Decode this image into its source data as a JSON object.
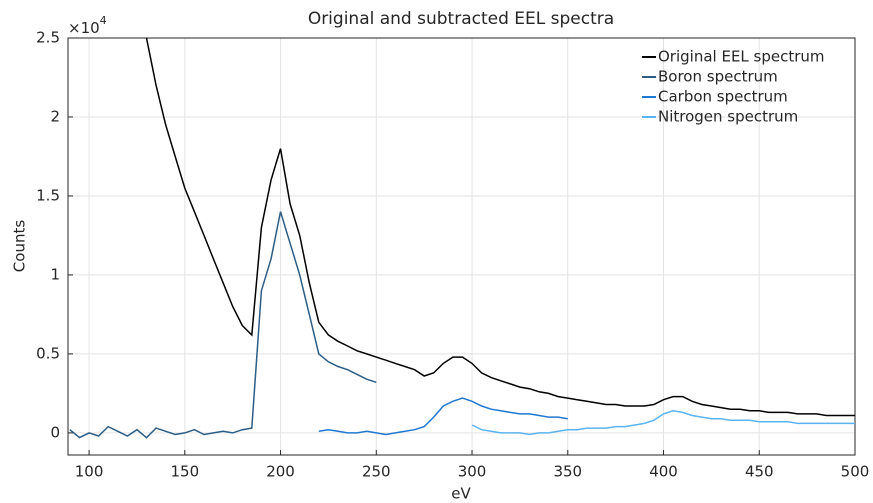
{
  "chart_data": {
    "type": "line",
    "title": "Original and subtracted EEL spectra",
    "xlabel": "eV",
    "ylabel": "Counts",
    "y_multiplier": "×10",
    "y_multiplier_exponent": "4",
    "xlim": [
      89,
      500
    ],
    "ylim": [
      -0.14,
      2.5
    ],
    "xticks": [
      100,
      150,
      200,
      250,
      300,
      350,
      400,
      450,
      500
    ],
    "yticks": [
      0,
      0.5,
      1,
      1.5,
      2,
      2.5
    ],
    "grid": true,
    "legend": "upper right",
    "series": [
      {
        "name": "Original EEL spectrum",
        "color": "#000000",
        "x": [
          130,
          135,
          140,
          145,
          150,
          155,
          160,
          165,
          170,
          175,
          180,
          185,
          190,
          195,
          200,
          205,
          210,
          215,
          220,
          225,
          230,
          235,
          240,
          245,
          250,
          255,
          260,
          265,
          270,
          275,
          280,
          285,
          290,
          295,
          300,
          305,
          310,
          315,
          320,
          325,
          330,
          335,
          340,
          345,
          350,
          355,
          360,
          365,
          370,
          375,
          380,
          385,
          390,
          395,
          400,
          405,
          410,
          415,
          420,
          425,
          430,
          435,
          440,
          445,
          450,
          455,
          460,
          465,
          470,
          475,
          480,
          485,
          490,
          495,
          500
        ],
        "values": [
          2.5,
          2.2,
          1.95,
          1.75,
          1.55,
          1.4,
          1.25,
          1.1,
          0.95,
          0.8,
          0.68,
          0.62,
          1.3,
          1.6,
          1.8,
          1.45,
          1.25,
          0.95,
          0.7,
          0.62,
          0.58,
          0.55,
          0.52,
          0.5,
          0.48,
          0.46,
          0.44,
          0.42,
          0.4,
          0.36,
          0.38,
          0.44,
          0.48,
          0.48,
          0.44,
          0.38,
          0.35,
          0.33,
          0.31,
          0.29,
          0.28,
          0.26,
          0.25,
          0.23,
          0.22,
          0.21,
          0.2,
          0.19,
          0.18,
          0.18,
          0.17,
          0.17,
          0.17,
          0.18,
          0.21,
          0.23,
          0.23,
          0.2,
          0.18,
          0.17,
          0.16,
          0.15,
          0.15,
          0.14,
          0.14,
          0.13,
          0.13,
          0.13,
          0.12,
          0.12,
          0.12,
          0.11,
          0.11,
          0.11,
          0.11
        ]
      },
      {
        "name": "Boron spectrum",
        "color": "#2b5d86",
        "x": [
          90,
          95,
          100,
          105,
          110,
          115,
          120,
          125,
          130,
          135,
          140,
          145,
          150,
          155,
          160,
          165,
          170,
          175,
          180,
          185,
          190,
          195,
          200,
          205,
          210,
          215,
          220,
          225,
          230,
          235,
          240,
          245,
          250
        ],
        "values": [
          0.02,
          -0.03,
          0.0,
          -0.02,
          0.04,
          0.01,
          -0.02,
          0.02,
          -0.03,
          0.03,
          0.01,
          -0.01,
          0.0,
          0.02,
          -0.01,
          0.0,
          0.01,
          0.0,
          0.02,
          0.03,
          0.9,
          1.1,
          1.4,
          1.2,
          1.0,
          0.75,
          0.5,
          0.45,
          0.42,
          0.4,
          0.37,
          0.34,
          0.32
        ]
      },
      {
        "name": "Carbon spectrum",
        "color": "#1f78d1",
        "x": [
          220,
          225,
          230,
          235,
          240,
          245,
          250,
          255,
          260,
          265,
          270,
          275,
          280,
          285,
          290,
          295,
          300,
          305,
          310,
          315,
          320,
          325,
          330,
          335,
          340,
          345,
          350
        ],
        "values": [
          0.01,
          0.02,
          0.01,
          0.0,
          0.0,
          0.01,
          0.0,
          -0.01,
          0.0,
          0.01,
          0.02,
          0.04,
          0.1,
          0.17,
          0.2,
          0.22,
          0.2,
          0.17,
          0.15,
          0.14,
          0.13,
          0.12,
          0.12,
          0.11,
          0.1,
          0.1,
          0.09
        ]
      },
      {
        "name": "Nitrogen spectrum",
        "color": "#5ab4f0",
        "x": [
          300,
          305,
          310,
          315,
          320,
          325,
          330,
          335,
          340,
          345,
          350,
          355,
          360,
          365,
          370,
          375,
          380,
          385,
          390,
          395,
          400,
          405,
          410,
          415,
          420,
          425,
          430,
          435,
          440,
          445,
          450,
          455,
          460,
          465,
          470,
          475,
          480,
          485,
          490,
          495,
          500
        ],
        "values": [
          0.05,
          0.02,
          0.01,
          0.0,
          0.0,
          0.0,
          -0.01,
          0.0,
          0.0,
          0.01,
          0.02,
          0.02,
          0.03,
          0.03,
          0.03,
          0.04,
          0.04,
          0.05,
          0.06,
          0.08,
          0.12,
          0.14,
          0.13,
          0.11,
          0.1,
          0.09,
          0.09,
          0.08,
          0.08,
          0.08,
          0.07,
          0.07,
          0.07,
          0.07,
          0.06,
          0.06,
          0.06,
          0.06,
          0.06,
          0.06,
          0.06
        ]
      }
    ]
  }
}
